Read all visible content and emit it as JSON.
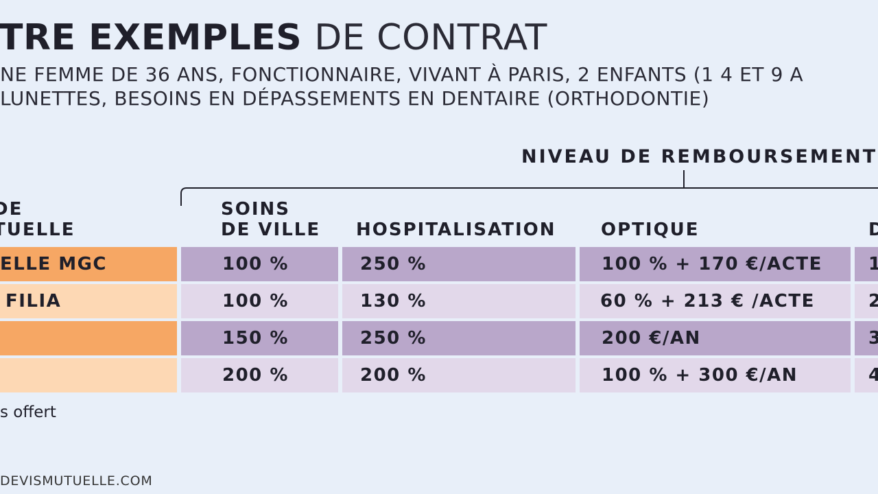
{
  "title": {
    "bold": "TRE EXEMPLES",
    "light": "DE CONTRAT"
  },
  "subtitle": {
    "line1": "NE FEMME DE 36 ANS, FONCTIONNAIRE, VIVANT À PARIS, 2 ENFANTS (1 4 ET 9 A",
    "line2": "LUNETTES, BESOINS EN DÉPASSEMENTS EN DENTAIRE (ORTHODONTIE)"
  },
  "reimbursement_header": "NIVEAU DE REMBOURSEMENT",
  "columns": {
    "left": "DE\nTUELLE",
    "soins": "SOINS\nDE VILLE",
    "hospitalisation": "HOSPITALISATION",
    "optique": "OPTIQUE",
    "dentaire": "D"
  },
  "rows": [
    {
      "name": "ELLE MGC",
      "soins": "100 %",
      "hosp": "250 %",
      "optique": "100 % + 170 €/ACTE",
      "dentaire": "1"
    },
    {
      "name": "FILIA",
      "soins": "100 %",
      "hosp": "130 %",
      "optique": "60 % + 213 € /ACTE",
      "dentaire": "2"
    },
    {
      "name": "",
      "soins": "150 %",
      "hosp": "250 %",
      "optique": "200 €/AN",
      "dentaire": "3"
    },
    {
      "name": "",
      "soins": "200 %",
      "hosp": "200 %",
      "optique": "100 % + 300 €/AN",
      "dentaire": "4"
    }
  ],
  "footnote": "s offert",
  "source": "DEVISMUTUELLE.COM",
  "colors": {
    "background": "#e8eff9",
    "orange_dark": "#f6a764",
    "orange_light": "#fdd8b4",
    "purple_dark": "#b9a7ca",
    "purple_light": "#e2d8ea"
  }
}
